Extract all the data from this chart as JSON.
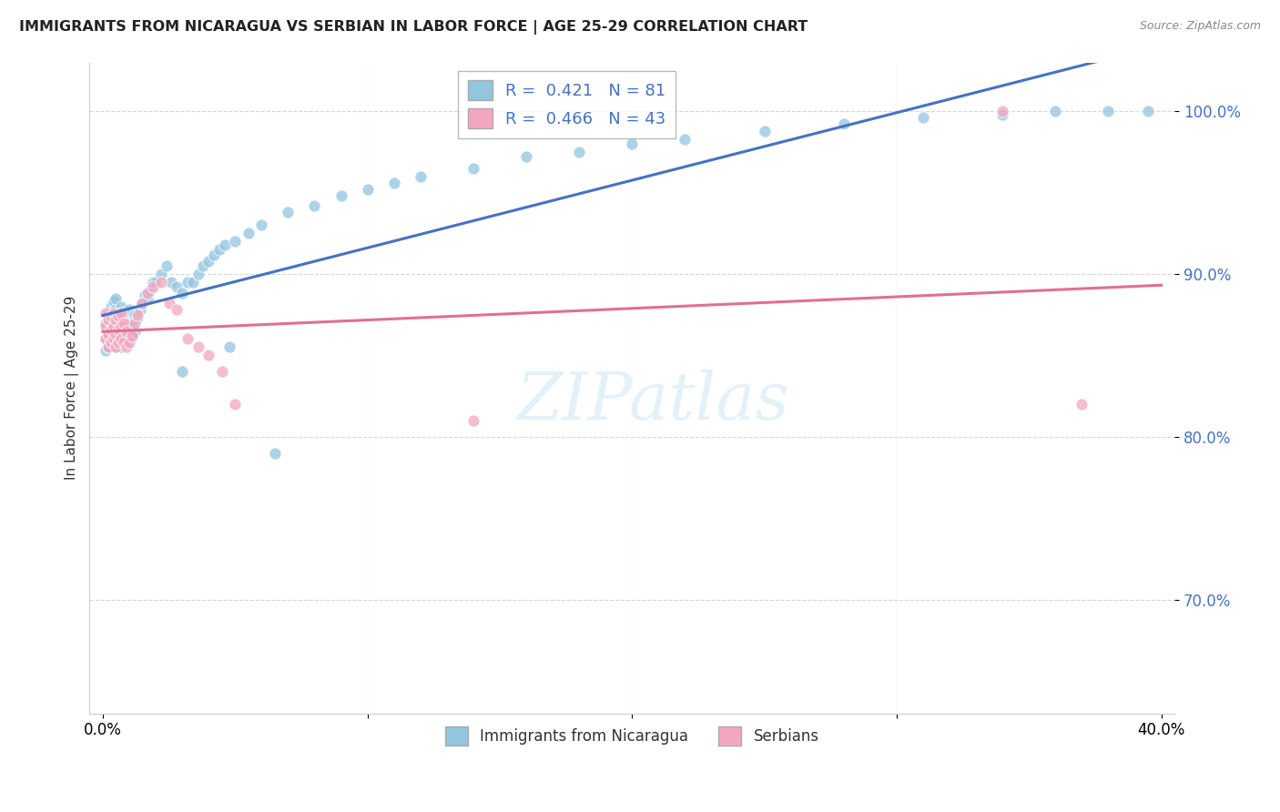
{
  "title": "IMMIGRANTS FROM NICARAGUA VS SERBIAN IN LABOR FORCE | AGE 25-29 CORRELATION CHART",
  "source": "Source: ZipAtlas.com",
  "ylabel": "In Labor Force | Age 25-29",
  "xlim": [
    -0.005,
    0.405
  ],
  "ylim": [
    0.63,
    1.03
  ],
  "R_nicaragua": 0.421,
  "N_nicaragua": 81,
  "R_serbian": 0.466,
  "N_serbian": 43,
  "color_nicaragua": "#92c5de",
  "color_serbian": "#f4a6c0",
  "trendline_nicaragua": "#4472c4",
  "trendline_serbian": "#e07090",
  "legend_label_nicaragua": "Immigrants from Nicaragua",
  "legend_label_serbian": "Serbians",
  "nicaragua_x": [
    0.001,
    0.001,
    0.001,
    0.002,
    0.002,
    0.002,
    0.003,
    0.003,
    0.003,
    0.003,
    0.004,
    0.004,
    0.004,
    0.004,
    0.005,
    0.005,
    0.005,
    0.005,
    0.005,
    0.006,
    0.006,
    0.006,
    0.007,
    0.007,
    0.007,
    0.007,
    0.008,
    0.008,
    0.009,
    0.009,
    0.01,
    0.01,
    0.011,
    0.011,
    0.012,
    0.012,
    0.013,
    0.014,
    0.015,
    0.016,
    0.017,
    0.018,
    0.019,
    0.02,
    0.022,
    0.024,
    0.026,
    0.028,
    0.03,
    0.032,
    0.034,
    0.036,
    0.038,
    0.04,
    0.042,
    0.044,
    0.046,
    0.05,
    0.055,
    0.06,
    0.07,
    0.08,
    0.09,
    0.1,
    0.11,
    0.12,
    0.14,
    0.16,
    0.18,
    0.2,
    0.22,
    0.25,
    0.28,
    0.31,
    0.34,
    0.36,
    0.38,
    0.395,
    0.03,
    0.048,
    0.065
  ],
  "nicaragua_y": [
    0.853,
    0.86,
    0.87,
    0.855,
    0.862,
    0.875,
    0.858,
    0.865,
    0.872,
    0.88,
    0.86,
    0.868,
    0.876,
    0.883,
    0.855,
    0.862,
    0.87,
    0.878,
    0.885,
    0.86,
    0.868,
    0.876,
    0.855,
    0.863,
    0.872,
    0.88,
    0.865,
    0.873,
    0.858,
    0.866,
    0.87,
    0.878,
    0.862,
    0.87,
    0.865,
    0.875,
    0.873,
    0.878,
    0.882,
    0.887,
    0.885,
    0.89,
    0.895,
    0.895,
    0.9,
    0.905,
    0.895,
    0.892,
    0.888,
    0.895,
    0.895,
    0.9,
    0.905,
    0.908,
    0.912,
    0.915,
    0.918,
    0.92,
    0.925,
    0.93,
    0.938,
    0.942,
    0.948,
    0.952,
    0.956,
    0.96,
    0.965,
    0.972,
    0.975,
    0.98,
    0.983,
    0.988,
    0.992,
    0.996,
    0.998,
    1.0,
    1.0,
    1.0,
    0.84,
    0.855,
    0.79
  ],
  "serbian_x": [
    0.001,
    0.001,
    0.001,
    0.002,
    0.002,
    0.002,
    0.003,
    0.003,
    0.003,
    0.004,
    0.004,
    0.004,
    0.005,
    0.005,
    0.005,
    0.006,
    0.006,
    0.006,
    0.007,
    0.007,
    0.007,
    0.008,
    0.008,
    0.009,
    0.009,
    0.01,
    0.011,
    0.012,
    0.013,
    0.015,
    0.017,
    0.019,
    0.022,
    0.025,
    0.028,
    0.032,
    0.036,
    0.04,
    0.045,
    0.05,
    0.14,
    0.34,
    0.37
  ],
  "serbian_y": [
    0.86,
    0.868,
    0.876,
    0.855,
    0.863,
    0.872,
    0.858,
    0.866,
    0.874,
    0.86,
    0.868,
    0.876,
    0.855,
    0.863,
    0.872,
    0.858,
    0.866,
    0.874,
    0.86,
    0.868,
    0.876,
    0.858,
    0.87,
    0.855,
    0.865,
    0.858,
    0.862,
    0.87,
    0.875,
    0.882,
    0.888,
    0.892,
    0.895,
    0.882,
    0.878,
    0.86,
    0.855,
    0.85,
    0.84,
    0.82,
    0.81,
    1.0,
    0.82
  ],
  "watermark_text": "ZIPatlas",
  "background_color": "#ffffff",
  "grid_color": "#cccccc"
}
